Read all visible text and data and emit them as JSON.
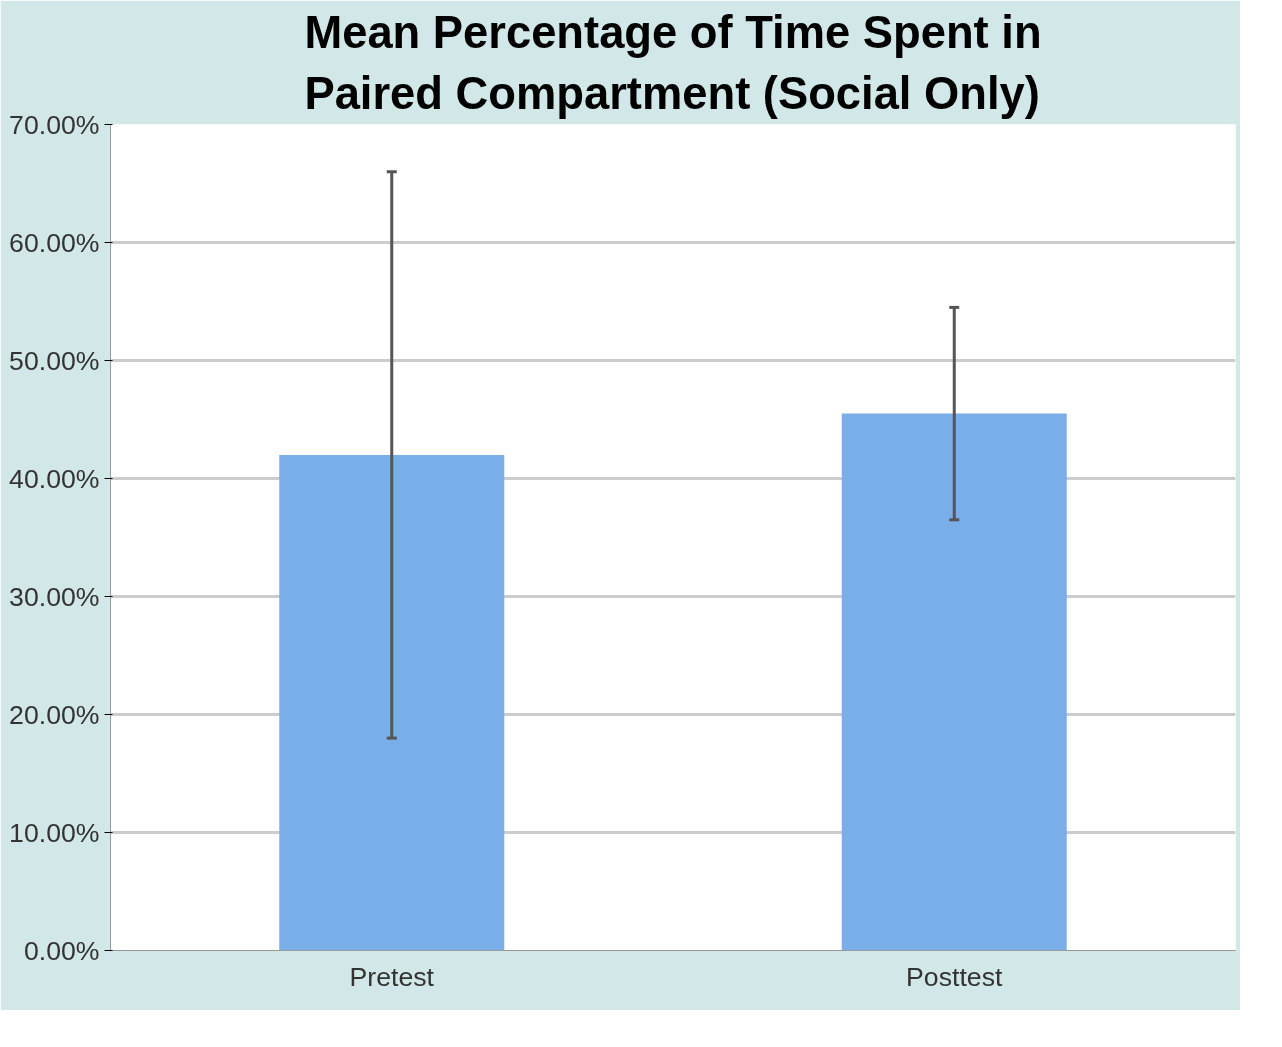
{
  "chart_data": {
    "type": "bar",
    "title": "Mean Percentage of Time Spent in\nPaired Compartment (Social Only)",
    "categories": [
      "Pretest",
      "Posttest"
    ],
    "values": [
      42,
      45.5
    ],
    "errors": [
      24,
      9
    ],
    "color": "#7aaee8",
    "ylim": [
      0,
      70
    ],
    "yticks": [
      {
        "value": 0,
        "label": "0.00%"
      },
      {
        "value": 10,
        "label": "10.00%"
      },
      {
        "value": 20,
        "label": "20.00%"
      },
      {
        "value": 30,
        "label": "30.00%"
      },
      {
        "value": 40,
        "label": "40.00%"
      },
      {
        "value": 50,
        "label": "50.00%"
      },
      {
        "value": 60,
        "label": "60.00%"
      },
      {
        "value": 70,
        "label": "70.00%"
      }
    ],
    "grid": "y"
  }
}
